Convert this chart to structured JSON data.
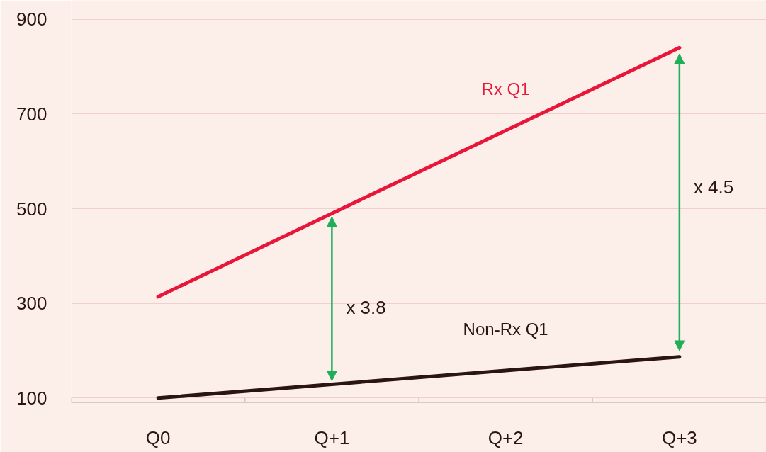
{
  "chart_data": {
    "type": "line",
    "categories": [
      "Q0",
      "Q+1",
      "Q+2",
      "Q+3"
    ],
    "series": [
      {
        "name": "Rx Q1",
        "color": "#e8173a",
        "values": [
          314,
          490,
          665,
          840
        ]
      },
      {
        "name": "Non-Rx Q1",
        "color": "#2a1512",
        "values": [
          100,
          129,
          158,
          187
        ]
      }
    ],
    "ylim": [
      90,
      940
    ],
    "yticks": [
      100,
      300,
      500,
      700,
      900
    ],
    "grid": "y",
    "marker": "none",
    "line_style": "solid",
    "annotations": [
      "x 3.8",
      "x 4.5"
    ]
  }
}
